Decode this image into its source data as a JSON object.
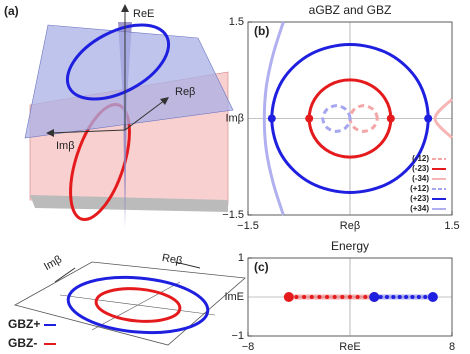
{
  "diagram": {
    "panel_label": "(a)",
    "axis_re_e": "ReE",
    "axis_im_beta_top": "Imβ",
    "axis_re_beta_top": "Reβ",
    "axis_im_beta_bottom": "Imβ",
    "axis_re_beta_bottom": "Reβ",
    "legend": [
      {
        "name": "GBZ+",
        "color": "#1f1fe0"
      },
      {
        "name": "GBZ-",
        "color": "#e41a1c"
      }
    ]
  },
  "chart_data": [
    {
      "type": "line",
      "panel_label": "(b)",
      "title": "aGBZ and GBZ",
      "x_label": "Reβ",
      "y_label": "Imβ",
      "xlim": [
        -1.5,
        1.5
      ],
      "ylim": [
        -1.5,
        1.5
      ],
      "xticks": [
        {
          "value": -1.5,
          "label": "−1.5"
        },
        1.5
      ],
      "yticks": [
        {
          "value": -1.5,
          "label": "−1.5"
        },
        1.5
      ],
      "zero_lines": true,
      "legend": "lower right",
      "series": [
        {
          "name": "(-12)",
          "color": "#f4a6a6",
          "dashed": true,
          "closed": true,
          "x": [
            0.4,
            0.34,
            0.2,
            0.06,
            0,
            0.06,
            0.2,
            0.34
          ],
          "y": [
            0,
            0.14,
            0.2,
            0.14,
            0,
            -0.14,
            -0.2,
            -0.14
          ]
        },
        {
          "name": "(-23)",
          "color": "#e41a1c",
          "dashed": false,
          "closed": true,
          "x": [
            0.6,
            0.52,
            0.3,
            0,
            -0.3,
            -0.52,
            -0.6,
            -0.52,
            -0.3,
            0,
            0.3,
            0.52
          ],
          "y": [
            0,
            0.3,
            0.52,
            0.6,
            0.52,
            0.3,
            0,
            -0.3,
            -0.52,
            -0.6,
            -0.52,
            -0.3
          ]
        },
        {
          "name": "(-34)",
          "color": "#f7b6b6",
          "dashed": false,
          "closed": false,
          "x": [
            1.5,
            1.25,
            1.5
          ],
          "y": [
            0.3,
            0,
            -0.3
          ]
        },
        {
          "name": "(+12)",
          "color": "#a6a6f0",
          "dashed": true,
          "closed": true,
          "x": [
            0,
            -0.06,
            -0.2,
            -0.34,
            -0.4,
            -0.34,
            -0.2,
            -0.06
          ],
          "y": [
            0,
            0.14,
            0.2,
            0.14,
            0,
            -0.14,
            -0.2,
            -0.14
          ]
        },
        {
          "name": "(+23)",
          "color": "#1f1fe0",
          "dashed": false,
          "closed": true,
          "x": [
            1.15,
            1,
            0.58,
            0,
            -0.58,
            -1,
            -1.15,
            -1,
            -0.58,
            0,
            0.58,
            1
          ],
          "y": [
            0,
            0.58,
            1,
            1.15,
            1,
            0.58,
            0,
            -0.58,
            -1,
            -1.15,
            -1,
            -0.58
          ]
        },
        {
          "name": "(+34)",
          "color": "#b0b0f0",
          "dashed": false,
          "closed": false,
          "x": [
            -0.98,
            -1.13,
            -1.23,
            -1.26,
            -1.23,
            -1.13,
            -0.98
          ],
          "y": [
            -1.5,
            -1,
            -0.5,
            0,
            0.5,
            1,
            1.5
          ]
        }
      ],
      "markers": {
        "x": [
          -1.15,
          -0.6,
          0.6,
          1.15
        ],
        "y": [
          0,
          0,
          0,
          0
        ],
        "colors": [
          "#1f1fe0",
          "#e41a1c",
          "#e41a1c",
          "#1f1fe0"
        ]
      }
    },
    {
      "type": "line",
      "panel_label": "(c)",
      "title": "Energy",
      "x_label": "ReE",
      "y_label": "ImE",
      "xlim": [
        -8,
        8
      ],
      "ylim": [
        -1,
        1
      ],
      "xticks": [
        {
          "value": -8,
          "label": "−8"
        },
        8
      ],
      "yticks": [
        {
          "value": -1,
          "label": "−1"
        },
        1
      ],
      "zero_lines": true,
      "series": [
        {
          "color": "#e41a1c",
          "x": [
            -4.8,
            -4.2,
            -3.6,
            -3.0,
            -2.4,
            -1.8,
            -1.2,
            -0.6,
            0,
            0.6,
            1.2,
            1.9
          ],
          "y": [
            0,
            0,
            0,
            0,
            0,
            0,
            0,
            0,
            0,
            0,
            0,
            0
          ]
        },
        {
          "color": "#1f1fe0",
          "x": [
            1.9,
            2.4,
            2.9,
            3.4,
            3.9,
            4.4,
            4.9,
            5.4,
            5.9,
            6.5
          ],
          "y": [
            0,
            0,
            0,
            0,
            0,
            0,
            0,
            0,
            0,
            0
          ]
        }
      ]
    }
  ]
}
